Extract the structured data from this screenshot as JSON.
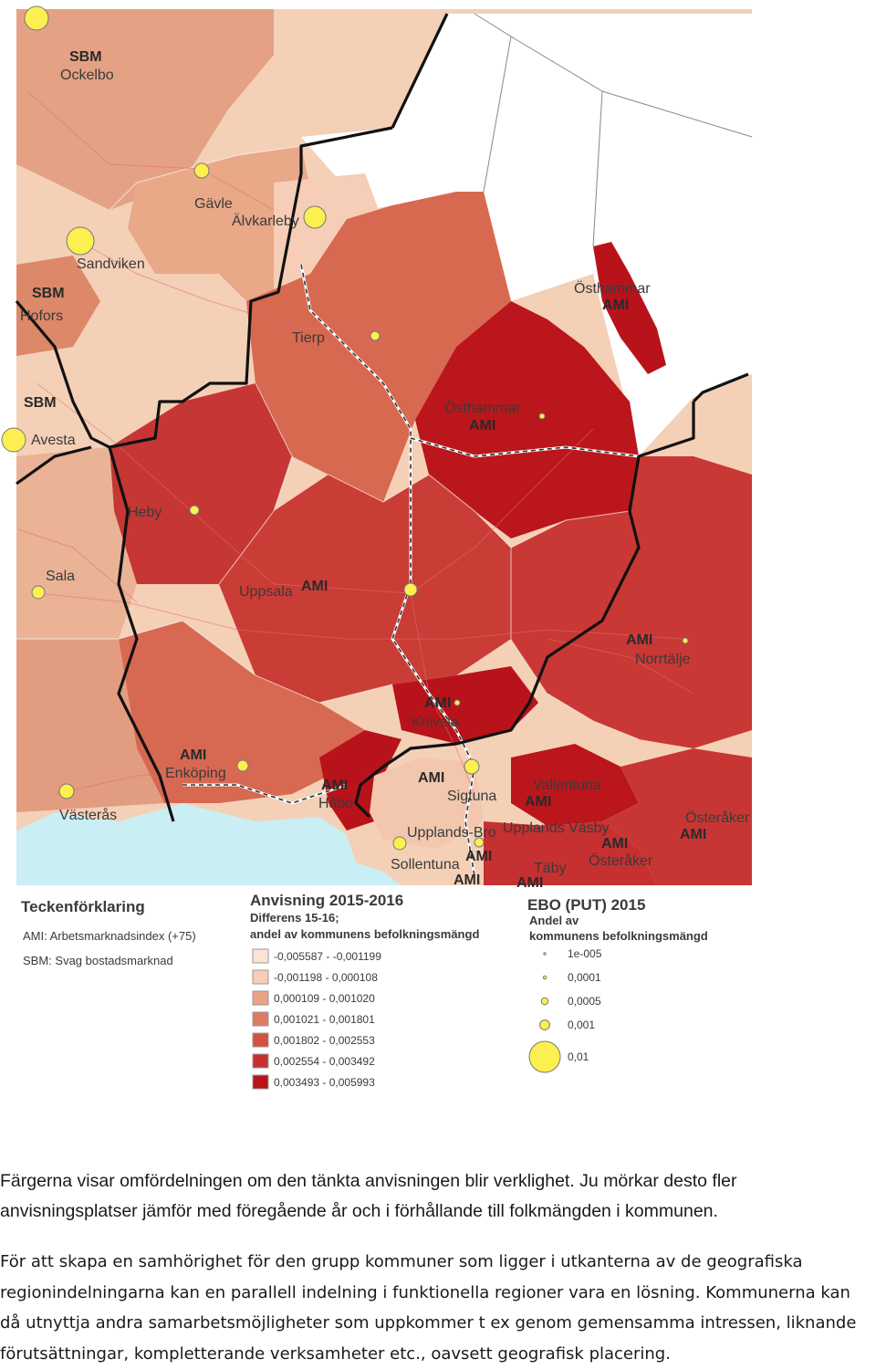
{
  "map": {
    "places": [
      {
        "name": "SBM",
        "bold": true
      },
      {
        "name": "Ockelbo"
      },
      {
        "name": "Gävle"
      },
      {
        "name": "Älvkarleby"
      },
      {
        "name": "Sandviken"
      },
      {
        "name": "SBM",
        "bold": true
      },
      {
        "name": "Hofors"
      },
      {
        "name": "Tierp"
      },
      {
        "name": "Östhammar"
      },
      {
        "name": "AMI",
        "bold": true
      },
      {
        "name": "Östhammar"
      },
      {
        "name": "AMI",
        "bold": true
      },
      {
        "name": "SBM",
        "bold": true
      },
      {
        "name": "Avesta"
      },
      {
        "name": "Heby"
      },
      {
        "name": "Uppsala"
      },
      {
        "name": "AMI",
        "bold": true
      },
      {
        "name": "Sala"
      },
      {
        "name": "AMI",
        "bold": true
      },
      {
        "name": "Norrtälje"
      },
      {
        "name": "AMI",
        "bold": true
      },
      {
        "name": "Knivsta"
      },
      {
        "name": "AMI",
        "bold": true
      },
      {
        "name": "Enköping"
      },
      {
        "name": "AMI",
        "bold": true
      },
      {
        "name": "AMI",
        "bold": true
      },
      {
        "name": "Håbo"
      },
      {
        "name": "Sigtuna"
      },
      {
        "name": "Vallentuna"
      },
      {
        "name": "AMI",
        "bold": true
      },
      {
        "name": "Västerås"
      },
      {
        "name": "Upplands-Bro"
      },
      {
        "name": "Upplands Väsby"
      },
      {
        "name": "Österåker"
      },
      {
        "name": "AMI",
        "bold": true
      },
      {
        "name": "AMI",
        "bold": true
      },
      {
        "name": "Österåker"
      },
      {
        "name": "Sollentuna"
      },
      {
        "name": "AMI",
        "bold": true
      },
      {
        "name": "Täby"
      },
      {
        "name": "AMI",
        "bold": true
      },
      {
        "name": "AMI",
        "bold": true
      }
    ]
  },
  "legend": {
    "title": "Teckenförklaring",
    "notes": [
      "AMI: Arbetsmarknadsindex (+75)",
      "SBM: Svag bostadsmarknad"
    ],
    "choropleth": {
      "title": "Anvisning 2015-2016",
      "subtitle_lines": [
        "Differens 15-16;",
        "andel av kommunens befolkningsmängd"
      ],
      "classes": [
        {
          "label": "-0,005587 - -0,001199",
          "color": "#fbe3d6"
        },
        {
          "label": "-0,001198 - 0,000108",
          "color": "#f6cdb6"
        },
        {
          "label": "0,000109 - 0,001020",
          "color": "#e9a385"
        },
        {
          "label": "0,001021 - 0,001801",
          "color": "#dd7b63"
        },
        {
          "label": "0,001802 - 0,002553",
          "color": "#d2513f"
        },
        {
          "label": "0,002554 - 0,003492",
          "color": "#c63030"
        },
        {
          "label": "0,003493 - 0,005993",
          "color": "#b8131a"
        }
      ]
    },
    "symbols": {
      "title": "EBO (PUT) 2015",
      "subtitle_lines": [
        "Andel av",
        "kommunens befolkningsmängd"
      ],
      "items": [
        {
          "label": "1e-005",
          "value": 1e-05
        },
        {
          "label": "0,0001",
          "value": 0.0001
        },
        {
          "label": "0,0005",
          "value": 0.0005
        },
        {
          "label": "0,001",
          "value": 0.001
        },
        {
          "label": "0,01",
          "value": 0.01
        }
      ],
      "color": "#fbf050"
    }
  },
  "caption": {
    "p1": "Färgerna visar omfördelningen om den tänkta anvisningen blir verklighet.  Ju mörkar desto fler anvisningsplatser jämför med föregående år och i förhållande till folkmängden i kommunen.",
    "p2": "För att skapa en samhörighet för den grupp kommuner som ligger i utkanterna av de geografiska regionindelningarna kan en parallell indelning i funktionella regioner vara en lösning. Kommunerna kan då utnyttja andra samarbetsmöjligheter som uppkommer t ex genom gemensamma intressen, liknande förutsättningar, kompletterande verksamheter etc., oavsett geografisk placering."
  }
}
